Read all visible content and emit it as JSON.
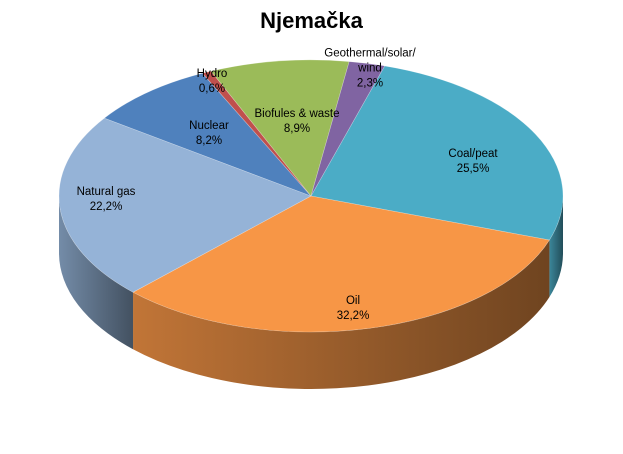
{
  "chart_data": {
    "type": "pie",
    "title": "Njemačka",
    "slices": [
      {
        "label": "Coal/peat",
        "value": 25.5,
        "display": "25,5%",
        "color": "#4BACC6"
      },
      {
        "label": "Oil",
        "value": 32.2,
        "display": "32,2%",
        "color": "#F79646"
      },
      {
        "label": "Natural gas",
        "value": 22.2,
        "display": "22,2%",
        "color": "#95B3D7"
      },
      {
        "label": "Nuclear",
        "value": 8.2,
        "display": "8,2%",
        "color": "#4F81BD"
      },
      {
        "label": "Hydro",
        "value": 0.6,
        "display": "0,6%",
        "color": "#C0504D"
      },
      {
        "label": "Biofules & waste",
        "value": 8.9,
        "display": "8,9%",
        "color": "#9BBB59"
      },
      {
        "label": "Geothermal/solar/ wind",
        "value": 2.3,
        "display": "2,3%",
        "color": "#8064A2"
      }
    ],
    "style": "3d-pie",
    "legend": "none"
  }
}
